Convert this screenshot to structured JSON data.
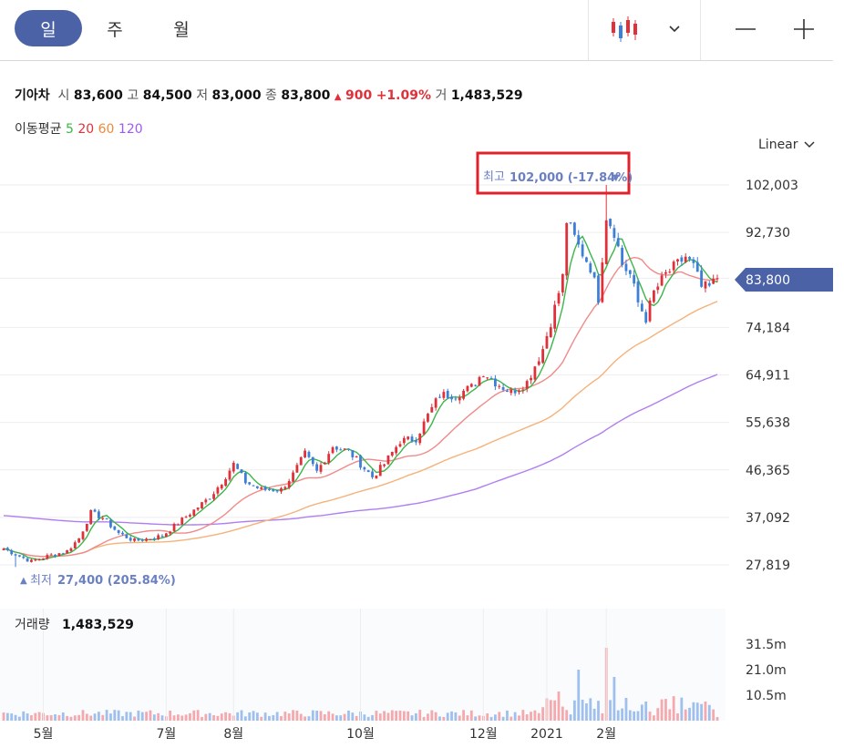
{
  "tabs": [
    {
      "label": "일",
      "active": true
    },
    {
      "label": "주",
      "active": false
    },
    {
      "label": "월",
      "active": false
    }
  ],
  "toolbar": {
    "chart_type_icon": "candlestick-icon",
    "minus_icon": "minus-icon",
    "plus_icon": "plus-icon"
  },
  "stock": {
    "name": "기아차",
    "open_label": "시",
    "open": "83,600",
    "high_label": "고",
    "high": "84,500",
    "low_label": "저",
    "low": "83,000",
    "close_label": "종",
    "close": "83,800",
    "change": "900",
    "change_pct": "+1.09%",
    "volume_label": "거",
    "volume": "1,483,529"
  },
  "moving_average": {
    "label": "이동평균",
    "periods": [
      "5",
      "20",
      "60",
      "120"
    ]
  },
  "scale_mode": "Linear",
  "price_axis": [
    "102,003",
    "92,730",
    "83,800",
    "74,184",
    "64,911",
    "55,638",
    "46,365",
    "37,092",
    "27,819"
  ],
  "current_price_tag": "83,800",
  "high_marker": {
    "label": "최고",
    "value": "102,000 (-17.84%)"
  },
  "low_marker": {
    "label": "최저",
    "value": "27,400 (205.84%)"
  },
  "volume_panel": {
    "label": "거래량",
    "value": "1,483,529",
    "axis": [
      "31.5m",
      "21.0m",
      "10.5m"
    ]
  },
  "x_axis_labels": [
    "5월",
    "7월",
    "8월",
    "10월",
    "12월",
    "2021",
    "2월"
  ],
  "colors": {
    "up": "#e0303a",
    "down": "#3d7fd6",
    "accent": "#4b63a6",
    "ma5": "#3cb64a",
    "ma20": "#f08a8a",
    "ma60": "#f5b27a",
    "ma120": "#b07ef0",
    "highlight_box": "#e0202a"
  },
  "chart_data": {
    "type": "candlestick",
    "title": "",
    "y_scale": "linear",
    "ylim": [
      25500,
      106000
    ],
    "x_labels": [
      "5월",
      "7월",
      "8월",
      "10월",
      "12월",
      "2021",
      "2월"
    ],
    "keypoints": [
      [
        0,
        31000
      ],
      [
        4,
        29500
      ],
      [
        7,
        28500
      ],
      [
        11,
        29500
      ],
      [
        16,
        30500
      ],
      [
        19,
        33000
      ],
      [
        22,
        38000
      ],
      [
        25,
        37000
      ],
      [
        29,
        34000
      ],
      [
        33,
        32500
      ],
      [
        37,
        33000
      ],
      [
        40,
        33500
      ],
      [
        44,
        36000
      ],
      [
        48,
        38500
      ],
      [
        52,
        41000
      ],
      [
        55,
        44000
      ],
      [
        58,
        47500
      ],
      [
        61,
        44000
      ],
      [
        65,
        42500
      ],
      [
        70,
        42500
      ],
      [
        73,
        45500
      ],
      [
        76,
        49500
      ],
      [
        79,
        46000
      ],
      [
        83,
        51000
      ],
      [
        87,
        50000
      ],
      [
        90,
        47500
      ],
      [
        93,
        45000
      ],
      [
        96,
        47500
      ],
      [
        100,
        52000
      ],
      [
        104,
        52500
      ],
      [
        107,
        57000
      ],
      [
        110,
        61000
      ],
      [
        114,
        61000
      ],
      [
        118,
        62500
      ],
      [
        121,
        65500
      ],
      [
        124,
        63500
      ],
      [
        128,
        61500
      ],
      [
        132,
        63500
      ],
      [
        136,
        70000
      ],
      [
        139,
        78000
      ],
      [
        141,
        84000
      ],
      [
        142,
        95000
      ],
      [
        145,
        90000
      ],
      [
        148,
        86000
      ],
      [
        150,
        80000
      ],
      [
        152,
        96000
      ],
      [
        154,
        93000
      ],
      [
        156,
        86500
      ],
      [
        158,
        84500
      ],
      [
        160,
        79000
      ],
      [
        162,
        76000
      ],
      [
        164,
        81000
      ],
      [
        167,
        84500
      ],
      [
        170,
        86500
      ],
      [
        172,
        88000
      ],
      [
        174,
        86000
      ],
      [
        176,
        82000
      ],
      [
        178,
        82000
      ],
      [
        180,
        83800
      ]
    ],
    "ma_periods": [
      5,
      20,
      60,
      120
    ],
    "ma120_start": 37500,
    "volume": {
      "spikes": [
        [
          140,
          12000000
        ],
        [
          145,
          21000000
        ],
        [
          152,
          30000000
        ],
        [
          154,
          18000000
        ]
      ]
    },
    "high": {
      "value": 102000,
      "pct": "-17.84%"
    },
    "low": {
      "value": 27400,
      "pct": "205.84%"
    },
    "last": {
      "open": 83600,
      "high": 84500,
      "low": 83000,
      "close": 83800,
      "volume": 1483529
    }
  }
}
